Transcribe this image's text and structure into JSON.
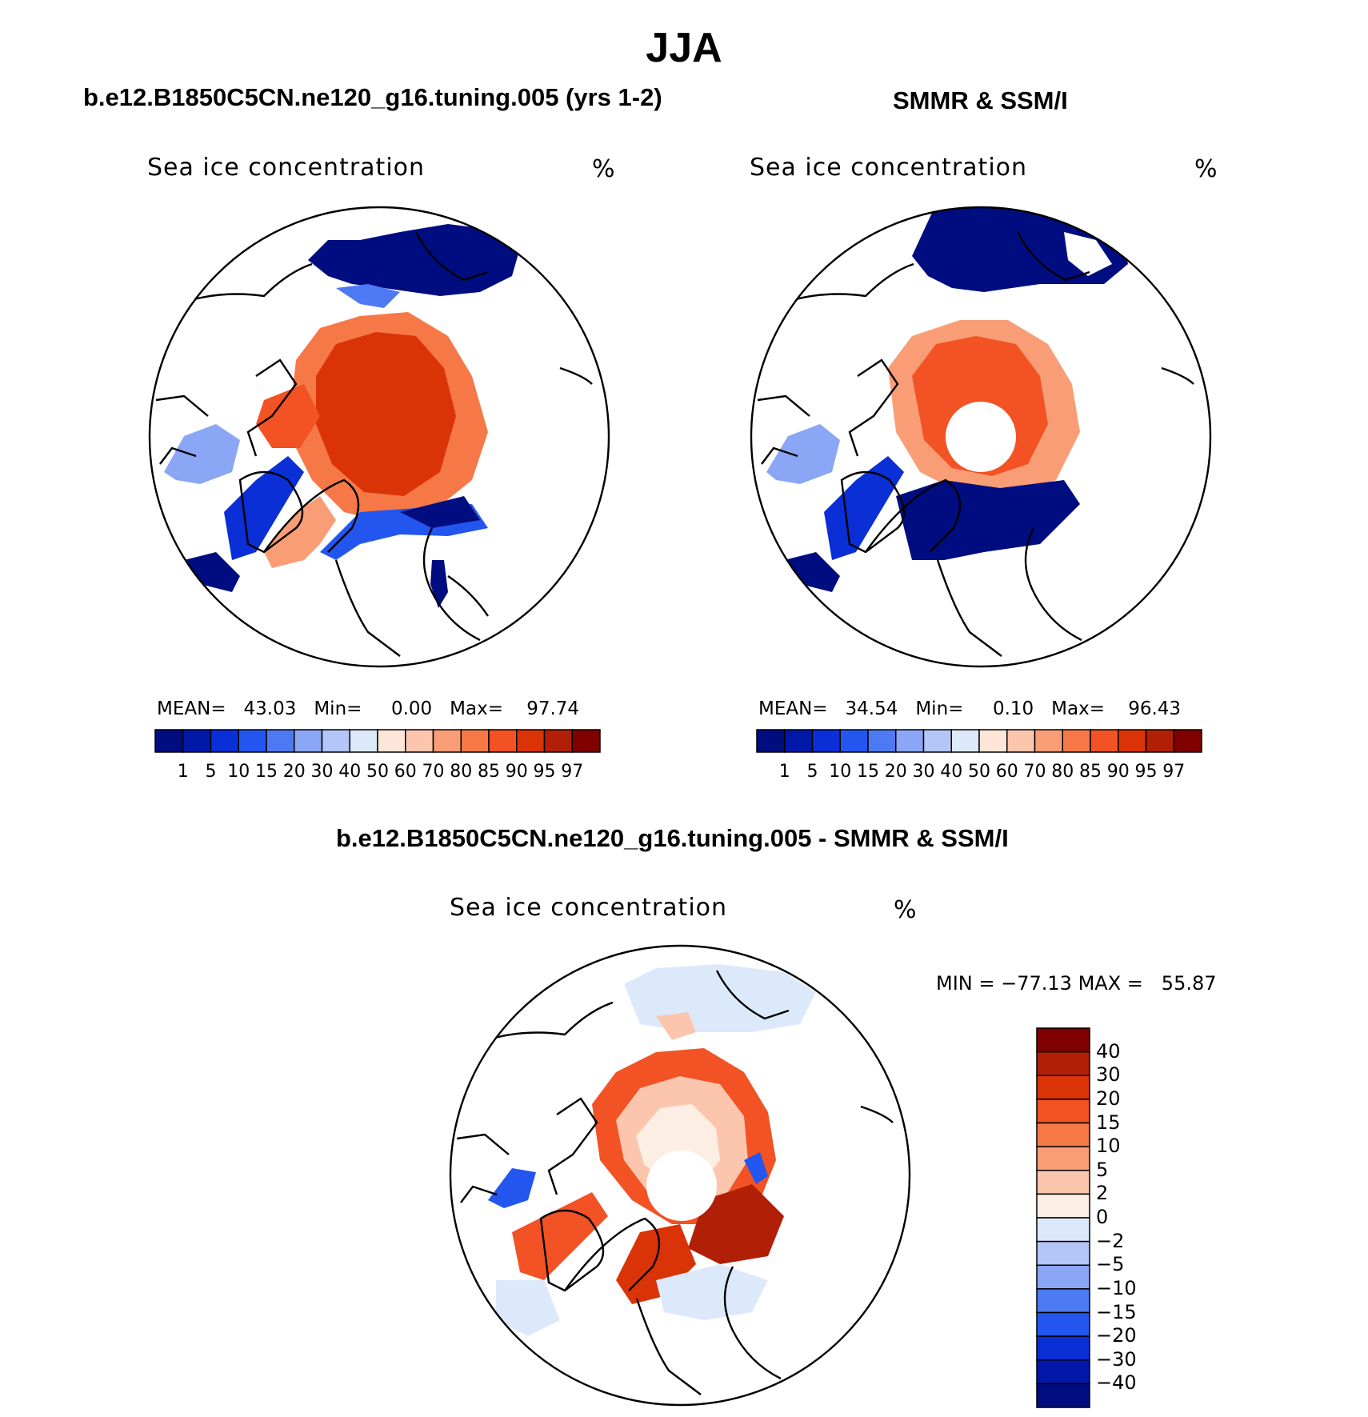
{
  "figure": {
    "title": "JJA"
  },
  "colors": {
    "ice_scale": [
      "#000d80",
      "#0018a8",
      "#0a2fd6",
      "#2356ee",
      "#4d79f2",
      "#8aa6f5",
      "#b3c6f7",
      "#dce9fb",
      "#fde6d8",
      "#fbc6ad",
      "#f99d76",
      "#f67847",
      "#f25224",
      "#db3308",
      "#b01f06",
      "#800000"
    ],
    "diff_scale": [
      "#000d80",
      "#0018a8",
      "#0a2fd6",
      "#2356ee",
      "#4d79f2",
      "#8aa6f5",
      "#b3c6f7",
      "#dce9fb",
      "#fdeee4",
      "#fbc6ad",
      "#f99d76",
      "#f67847",
      "#f25224",
      "#db3308",
      "#b01f06",
      "#800000"
    ],
    "land_outline": "#000000"
  },
  "panels": [
    {
      "id": "model",
      "title": "b.e12.B1850C5CN.ne120_g16.tuning.005 (yrs 1-2)",
      "variable": "Sea ice concentration",
      "units": "%",
      "mean_label": "MEAN=",
      "mean": "43.03",
      "min_label": "Min=",
      "min": "0.00",
      "max_label": "Max=",
      "max": "97.74"
    },
    {
      "id": "obs",
      "title": "SMMR & SSM/I",
      "variable": "Sea ice concentration",
      "units": "%",
      "mean_label": "MEAN=",
      "mean": "34.54",
      "min_label": "Min=",
      "min": "0.10",
      "max_label": "Max=",
      "max": "96.43"
    }
  ],
  "ice_ticks": [
    "1",
    "5",
    "10",
    "15",
    "20",
    "30",
    "40",
    "50",
    "60",
    "70",
    "80",
    "85",
    "90",
    "95",
    "97"
  ],
  "difference": {
    "title": "b.e12.B1850C5CN.ne120_g16.tuning.005 - SMMR & SSM/I",
    "variable": "Sea ice concentration",
    "units": "%",
    "min_label": "MIN =",
    "min": "−77.13",
    "max_label": "MAX =",
    "max": "55.87",
    "ticks": [
      "40",
      "30",
      "20",
      "15",
      "10",
      "5",
      "2",
      "0",
      "−2",
      "−5",
      "−10",
      "−15",
      "−20",
      "−30",
      "−40"
    ]
  }
}
